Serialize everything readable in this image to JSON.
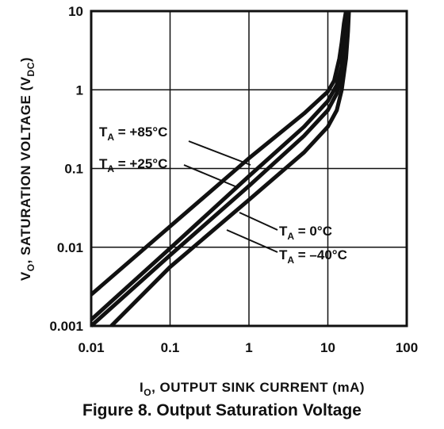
{
  "figure_caption": "Figure 8. Output Saturation Voltage",
  "chart_data": {
    "type": "line",
    "x_scale": "log",
    "y_scale": "log",
    "xlim": [
      0.01,
      100
    ],
    "ylim": [
      0.001,
      10
    ],
    "grid": true,
    "x_ticks": [
      "0.01",
      "0.1",
      "1",
      "10",
      "100"
    ],
    "y_ticks": [
      "0.001",
      "0.01",
      "0.1",
      "1",
      "10"
    ],
    "xlabel": {
      "main": "I",
      "sub": "O",
      "rest": ", OUTPUT SINK CURRENT (mA)"
    },
    "ylabel": {
      "main": "V",
      "sub1": "O",
      "mid": ", SATURATION VOLTAGE (V",
      "sub2": "DC",
      "end": ")"
    },
    "series": [
      {
        "name": {
          "main": "T",
          "sub": "A",
          "rest": " = +85°C"
        },
        "x": [
          0.01,
          0.1,
          1,
          5,
          10,
          12,
          14,
          15,
          16,
          17
        ],
        "y": [
          0.0025,
          0.0184,
          0.135,
          0.5,
          0.95,
          1.3,
          2.5,
          4.0,
          7.0,
          10
        ]
      },
      {
        "name": {
          "main": "T",
          "sub": "A",
          "rest": " = +25°C"
        },
        "x": [
          0.01,
          0.1,
          1,
          5,
          10,
          13,
          15,
          16,
          17,
          17.5
        ],
        "y": [
          0.0012,
          0.0097,
          0.08,
          0.34,
          0.72,
          1.15,
          2.0,
          3.5,
          6.5,
          10
        ]
      },
      {
        "name": {
          "main": "T",
          "sub": "A",
          "rest": " = 0°C"
        },
        "x": [
          0.01,
          0.1,
          1,
          5,
          10,
          13,
          15,
          16.5,
          17.5,
          18
        ],
        "y": [
          0.001,
          0.0079,
          0.06,
          0.26,
          0.55,
          0.9,
          1.6,
          3.0,
          6.0,
          10
        ]
      },
      {
        "name": {
          "main": "T",
          "sub": "A",
          "rest": " = –40°C"
        },
        "x": [
          0.018,
          0.1,
          1,
          5,
          10,
          13,
          15,
          17,
          18,
          18.5
        ],
        "y": [
          0.001,
          0.0056,
          0.04,
          0.16,
          0.34,
          0.55,
          1.0,
          2.5,
          5.5,
          10
        ]
      }
    ]
  }
}
